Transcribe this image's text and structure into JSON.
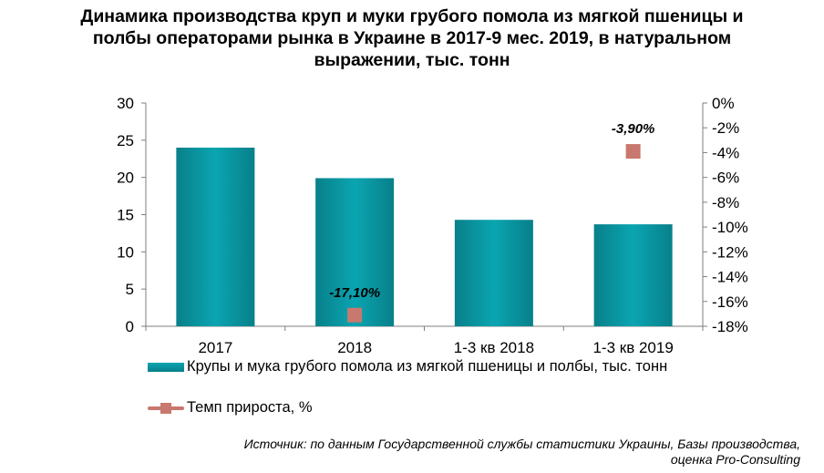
{
  "title_lines": [
    "Динамика производства круп и муки грубого помола из мягкой пшеницы и",
    "полбы операторами рынка в Украине в 2017-9 мес. 2019, в натуральном",
    "выражении, тыс. тонн"
  ],
  "colors": {
    "bar": "#0aa5b1",
    "bar_dark": "#08808a",
    "marker": "#c8786e",
    "line": "#c8786e",
    "axis": "#7f7f7f"
  },
  "chart_data": {
    "type": "bar",
    "categories": [
      "2017",
      "2018",
      "1-3 кв 2018",
      "1-3 кв 2019"
    ],
    "series": [
      {
        "name": "Крупы и мука грубого помола из мягкой пшеницы и полбы, тыс. тонн",
        "type": "bar",
        "axis": "left",
        "values": [
          24.0,
          19.9,
          14.3,
          13.7
        ]
      },
      {
        "name": "Темп прироста, %",
        "type": "marker",
        "axis": "right",
        "values": [
          null,
          -17.1,
          null,
          -3.9
        ],
        "data_labels": [
          null,
          "-17,10%",
          null,
          "-3,90%"
        ]
      }
    ],
    "y_left": {
      "min": 0,
      "max": 30,
      "step": 5,
      "tick_labels": [
        "0",
        "5",
        "10",
        "15",
        "20",
        "25",
        "30"
      ]
    },
    "y_right": {
      "min": -18,
      "max": 0,
      "step": 2,
      "tick_labels": [
        "-18%",
        "-16%",
        "-14%",
        "-12%",
        "-10%",
        "-8%",
        "-6%",
        "-4%",
        "-2%",
        "0%"
      ]
    },
    "grid": false,
    "legend_position": "bottom-left"
  },
  "legend": [
    {
      "label": "Крупы и мука грубого помола из мягкой пшеницы и полбы, тыс. тонн",
      "kind": "bar"
    },
    {
      "label": "Темп прироста, %",
      "kind": "line-marker"
    }
  ],
  "source_lines": [
    "Источник: по данным Государственной службы статистики Украины, Базы производства,",
    "оценка Pro-Consulting"
  ]
}
